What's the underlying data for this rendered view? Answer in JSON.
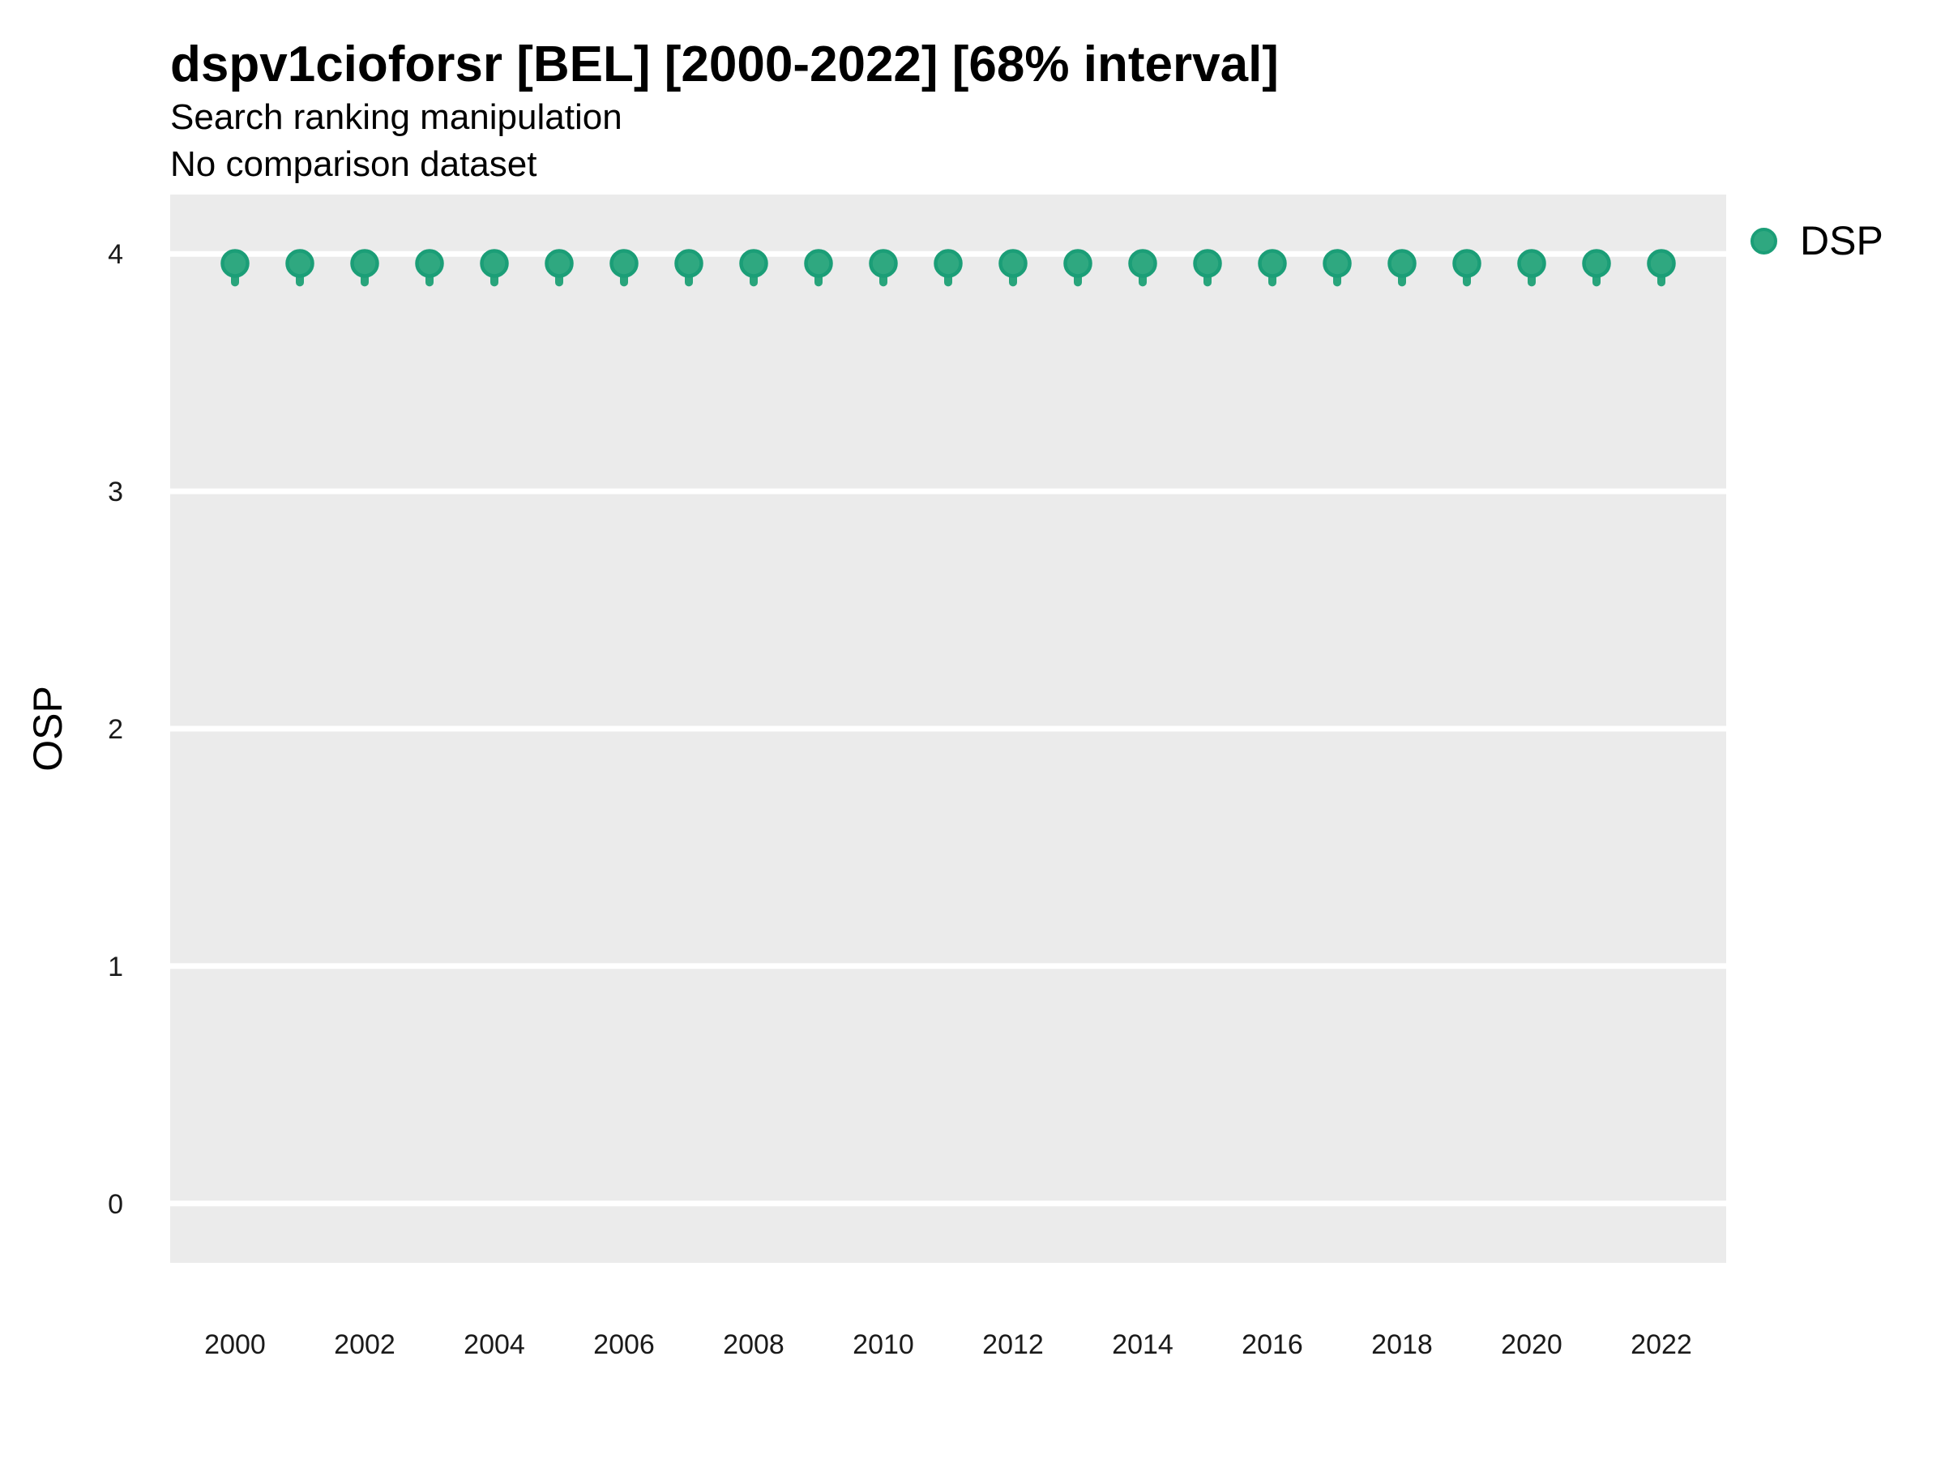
{
  "chart_data": {
    "type": "scatter",
    "title": "dspv1cioforsr [BEL] [2000-2022] [68% interval]",
    "subtitle": "Search ranking manipulation",
    "note": "No comparison dataset",
    "xlabel": "",
    "ylabel": "OSP",
    "legend_position": "right-top",
    "grid": "horizontal-major-only",
    "panel_bg": "#EBEBEB",
    "gridline_color": "#FFFFFF",
    "point_fill": "#2FA880",
    "point_stroke": "#1B9E77",
    "interval_color": "#28A47B",
    "tick_label_color": "#1A1A1A",
    "xlim": [
      1999.0,
      2023.0
    ],
    "ylim": [
      -0.25,
      4.25
    ],
    "xticks": [
      2000,
      2002,
      2004,
      2006,
      2008,
      2010,
      2012,
      2014,
      2016,
      2018,
      2020,
      2022
    ],
    "yticks": [
      0,
      1,
      2,
      3,
      4
    ],
    "x": [
      2000,
      2001,
      2002,
      2003,
      2004,
      2005,
      2006,
      2007,
      2008,
      2009,
      2010,
      2011,
      2012,
      2013,
      2014,
      2015,
      2016,
      2017,
      2018,
      2019,
      2020,
      2021,
      2022
    ],
    "series": [
      {
        "name": "DSP",
        "values": [
          3.96,
          3.96,
          3.96,
          3.96,
          3.96,
          3.96,
          3.96,
          3.96,
          3.96,
          3.96,
          3.96,
          3.96,
          3.96,
          3.96,
          3.96,
          3.96,
          3.96,
          3.96,
          3.96,
          3.96,
          3.96,
          3.96,
          3.96
        ],
        "interval_low": [
          3.88,
          3.88,
          3.88,
          3.88,
          3.88,
          3.88,
          3.88,
          3.88,
          3.88,
          3.88,
          3.88,
          3.88,
          3.88,
          3.88,
          3.88,
          3.88,
          3.88,
          3.88,
          3.88,
          3.88,
          3.88,
          3.88,
          3.88
        ],
        "interval_high": [
          3.97,
          3.97,
          3.97,
          3.97,
          3.97,
          3.97,
          3.97,
          3.97,
          3.97,
          3.97,
          3.97,
          3.97,
          3.97,
          3.97,
          3.97,
          3.97,
          3.97,
          3.97,
          3.97,
          3.97,
          3.97,
          3.97,
          3.97
        ]
      }
    ],
    "legend": [
      {
        "label": "DSP"
      }
    ]
  }
}
